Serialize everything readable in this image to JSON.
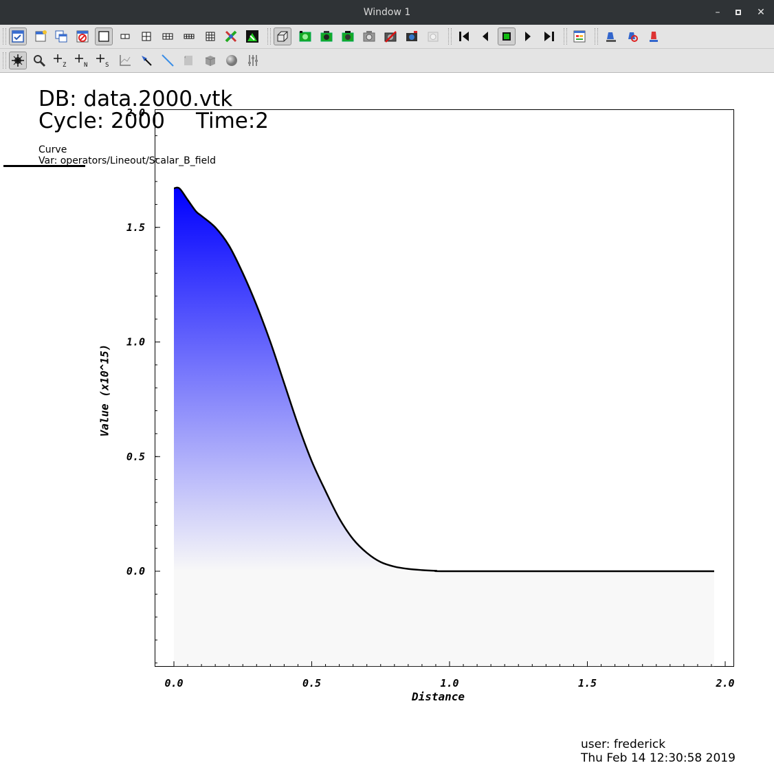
{
  "window": {
    "title": "Window 1",
    "controls": [
      "minimize",
      "maximize",
      "close"
    ]
  },
  "toolbar_top": {
    "icons": [
      "active-window-icon",
      "new-window-icon",
      "clone-window-icon",
      "delete-window-icon",
      "layout-1x1-icon",
      "layout-1x2-icon",
      "layout-2x2-icon",
      "layout-2x3-icon",
      "layout-2x4-icon",
      "layout-3x3-icon",
      "spin-icon",
      "lock-view-icon",
      "view-3d-icon",
      "camera-green-1-icon",
      "camera-green-2-icon",
      "camera-green-3-icon",
      "camera-gray-icon",
      "camera-red-icon",
      "camera-blue-icon",
      "camera-faded-icon",
      "first-frame-icon",
      "previous-frame-icon",
      "stop-icon",
      "next-frame-icon",
      "last-frame-icon",
      "plot-list-icon",
      "pick-lineout-1-icon",
      "pick-lineout-2-icon",
      "pick-lineout-3-icon"
    ]
  },
  "toolbar_bottom": {
    "icons": [
      "navigate-icon",
      "zoom-icon",
      "zone-pick-icon",
      "node-pick-icon",
      "spreadsheet-pick-icon",
      "lineout-axes-icon",
      "pick-arrow-icon",
      "line-tool-icon",
      "plane-tool-icon",
      "box-tool-icon",
      "sphere-tool-icon",
      "point-tool-icon"
    ],
    "pick_labels": [
      "Z",
      "N",
      "S"
    ]
  },
  "annotations": {
    "db": "DB: data.2000.vtk",
    "cycle": "Cycle: 2000",
    "time": "Time:2",
    "legend_title": "Curve",
    "legend_var": "Var: operators/Lineout/Scalar_B_field",
    "user": "user: frederick",
    "date": "Thu Feb 14 12:30:58 2019"
  },
  "chart_data": {
    "type": "area",
    "title": "",
    "xlabel": "Distance",
    "ylabel": "Value (x10^15)",
    "xlim": [
      0.0,
      2.0
    ],
    "ylim": [
      -0.42,
      2.0
    ],
    "x_ticks": [
      "0.0",
      "0.5",
      "1.0",
      "1.5",
      "2.0"
    ],
    "y_ticks": [
      "0.0",
      "0.5",
      "1.0",
      "1.5",
      "2.0"
    ],
    "fill_gradient": {
      "top": "#0000ff",
      "bottom": "#f8f8f8"
    },
    "line_color": "#000000",
    "legend_position": "top-left",
    "series": [
      {
        "x": [
          0.0,
          0.02,
          0.05,
          0.08,
          0.1,
          0.15,
          0.2,
          0.25,
          0.3,
          0.35,
          0.4,
          0.45,
          0.5,
          0.55,
          0.6,
          0.65,
          0.7,
          0.75,
          0.8,
          0.85,
          0.9,
          0.95,
          1.0,
          1.5,
          1.96
        ],
        "y": [
          1.67,
          1.67,
          1.62,
          1.57,
          1.55,
          1.5,
          1.42,
          1.3,
          1.16,
          1.0,
          0.82,
          0.64,
          0.48,
          0.35,
          0.23,
          0.14,
          0.08,
          0.04,
          0.02,
          0.01,
          0.005,
          0.002,
          0.0,
          0.0,
          0.0
        ]
      }
    ]
  }
}
